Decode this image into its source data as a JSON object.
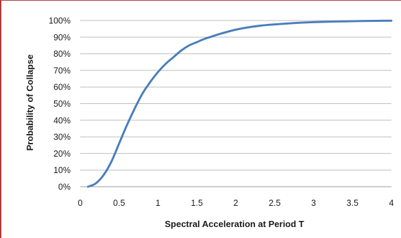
{
  "chart_data": {
    "type": "line",
    "title": "",
    "xlabel": "Spectral Acceleration at Period T",
    "ylabel": "Probability of Collapse",
    "xlim": [
      0,
      4
    ],
    "ylim": [
      0,
      1
    ],
    "x_ticks": [
      "0",
      "0.5",
      "1",
      "1.5",
      "2",
      "2.5",
      "3",
      "3.5",
      "4"
    ],
    "y_ticks": [
      "0%",
      "10%",
      "20%",
      "30%",
      "40%",
      "50%",
      "60%",
      "70%",
      "80%",
      "90%",
      "100%"
    ],
    "grid": "horizontal",
    "legend": "none",
    "series": [
      {
        "color": "#4a7ebb",
        "x": [
          0.1,
          0.2,
          0.3,
          0.4,
          0.5,
          0.6,
          0.7,
          0.8,
          0.9,
          1.0,
          1.1,
          1.2,
          1.3,
          1.4,
          1.5,
          1.6,
          1.7,
          1.8,
          2.0,
          2.2,
          2.4,
          2.6,
          2.8,
          3.0,
          3.2,
          3.4,
          3.6,
          3.8,
          4.0
        ],
        "y": [
          0.0,
          0.02,
          0.07,
          0.15,
          0.26,
          0.37,
          0.47,
          0.56,
          0.63,
          0.69,
          0.74,
          0.78,
          0.82,
          0.85,
          0.87,
          0.89,
          0.905,
          0.92,
          0.945,
          0.962,
          0.973,
          0.98,
          0.986,
          0.99,
          0.993,
          0.995,
          0.997,
          0.998,
          0.999
        ]
      }
    ]
  }
}
